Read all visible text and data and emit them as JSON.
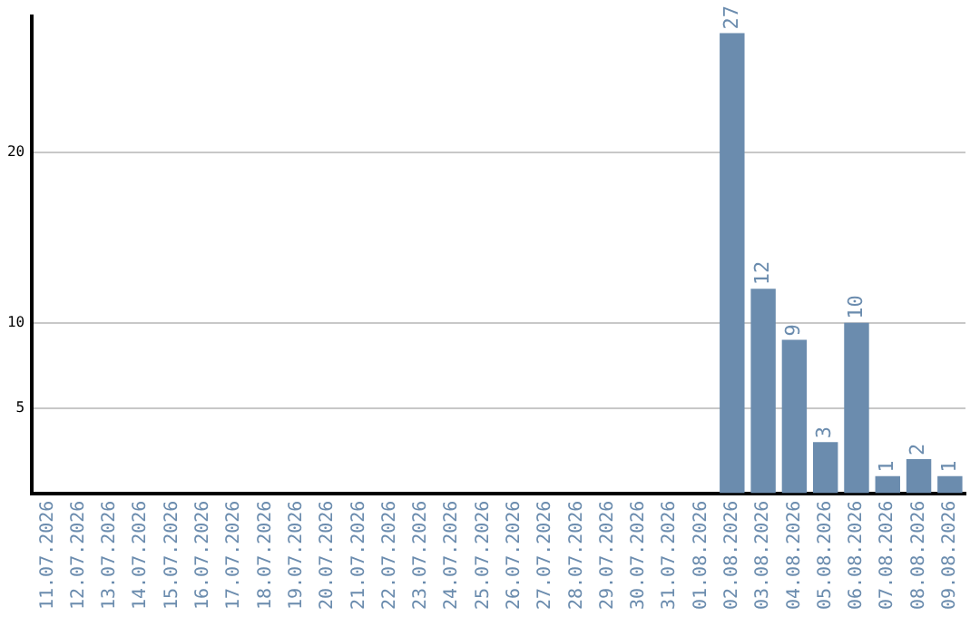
{
  "chart_data": {
    "type": "bar",
    "categories": [
      "11.07.2026",
      "12.07.2026",
      "13.07.2026",
      "14.07.2026",
      "15.07.2026",
      "16.07.2026",
      "17.07.2026",
      "18.07.2026",
      "19.07.2026",
      "20.07.2026",
      "21.07.2026",
      "22.07.2026",
      "23.07.2026",
      "24.07.2026",
      "25.07.2026",
      "26.07.2026",
      "27.07.2026",
      "28.07.2026",
      "29.07.2026",
      "30.07.2026",
      "31.07.2026",
      "01.08.2026",
      "02.08.2026",
      "03.08.2026",
      "04.08.2026",
      "05.08.2026",
      "06.08.2026",
      "07.08.2026",
      "08.08.2026",
      "09.08.2026"
    ],
    "values": [
      0,
      0,
      0,
      0,
      0,
      0,
      0,
      0,
      0,
      0,
      0,
      0,
      0,
      0,
      0,
      0,
      0,
      0,
      0,
      0,
      0,
      0,
      27,
      12,
      9,
      3,
      10,
      1,
      2,
      1
    ],
    "value_labels": [
      null,
      null,
      null,
      null,
      null,
      null,
      null,
      null,
      null,
      null,
      null,
      null,
      null,
      null,
      null,
      null,
      null,
      null,
      null,
      null,
      null,
      null,
      "27",
      "12",
      "9",
      "3",
      "10",
      "1",
      "2",
      "1"
    ],
    "color": "#6b8cae",
    "ylim": [
      0,
      28
    ],
    "yticks": [
      5,
      10,
      20
    ],
    "grid": "y"
  }
}
